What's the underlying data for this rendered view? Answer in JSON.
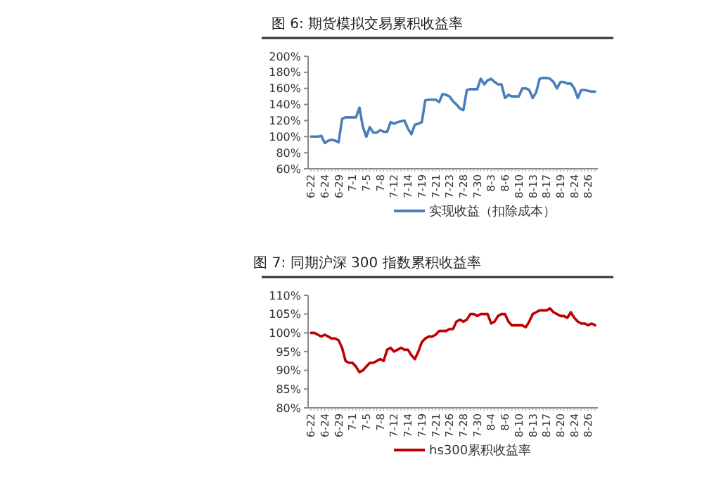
{
  "chart_data": [
    {
      "type": "line",
      "title": "图 6:  期货模拟交易累积收益率",
      "categories": [
        "6-22",
        null,
        null,
        null,
        "6-24",
        null,
        null,
        null,
        "6-29",
        null,
        null,
        null,
        "7-1",
        null,
        null,
        null,
        "7-5",
        null,
        null,
        null,
        "7-8",
        null,
        null,
        null,
        "7-12",
        null,
        null,
        null,
        "7-14",
        null,
        null,
        null,
        "7-19",
        null,
        null,
        null,
        "7-21",
        null,
        null,
        null,
        "7-23",
        null,
        null,
        null,
        "7-28",
        null,
        null,
        null,
        "7-30",
        null,
        null,
        null,
        "8-3",
        null,
        null,
        null,
        "8-6",
        null,
        null,
        null,
        "8-10",
        null,
        null,
        null,
        "8-13",
        null,
        null,
        null,
        "8-17",
        null,
        null,
        null,
        "8-19",
        null,
        null,
        null,
        "8-24",
        null,
        null,
        null,
        "8-26",
        null,
        null
      ],
      "series": [
        {
          "name": "实现收益（扣除成本）",
          "color": "#4a7ebb",
          "values": [
            100,
            100,
            100,
            101,
            92,
            95,
            96,
            95,
            93,
            122,
            124,
            124,
            124,
            124,
            136,
            112,
            100,
            112,
            105,
            105,
            108,
            106,
            106,
            118,
            116,
            118,
            119,
            120,
            110,
            103,
            115,
            116,
            118,
            145,
            146,
            146,
            146,
            143,
            153,
            152,
            150,
            144,
            140,
            135,
            133,
            158,
            159,
            159,
            159,
            172,
            165,
            170,
            172,
            168,
            165,
            165,
            148,
            152,
            150,
            150,
            150,
            160,
            160,
            158,
            148,
            155,
            172,
            173,
            173,
            172,
            168,
            160,
            168,
            168,
            166,
            166,
            160,
            148,
            158,
            158,
            157,
            156,
            156
          ]
        }
      ],
      "ylim": [
        60,
        200
      ],
      "yticks": [
        {
          "value": 60,
          "label": "60%"
        },
        {
          "value": 80,
          "label": "80%"
        },
        {
          "value": 100,
          "label": "100%"
        },
        {
          "value": 120,
          "label": "120%"
        },
        {
          "value": 140,
          "label": "140%"
        },
        {
          "value": 160,
          "label": "160%"
        },
        {
          "value": 180,
          "label": "180%"
        },
        {
          "value": 200,
          "label": "200%"
        }
      ],
      "legend": "bottom",
      "grid": false,
      "marker": "none",
      "line_style": "solid"
    },
    {
      "type": "line",
      "title": "图 7:  同期沪深 300 指数累积收益率",
      "categories": [
        "6-22",
        null,
        null,
        null,
        "6-24",
        null,
        null,
        null,
        "6-29",
        null,
        null,
        null,
        "7-1",
        null,
        null,
        null,
        "7-5",
        null,
        null,
        null,
        "7-8",
        null,
        null,
        null,
        "7-12",
        null,
        null,
        null,
        "7-14",
        null,
        null,
        null,
        "7-19",
        null,
        null,
        null,
        "7-21",
        null,
        null,
        null,
        "7-26",
        null,
        null,
        null,
        "7-28",
        null,
        null,
        null,
        "7-30",
        null,
        null,
        null,
        "8-4",
        null,
        null,
        null,
        "8-6",
        null,
        null,
        null,
        "8-10",
        null,
        null,
        null,
        "8-13",
        null,
        null,
        null,
        "8-17",
        null,
        null,
        null,
        "8-20",
        null,
        null,
        null,
        "8-24",
        null,
        null,
        null,
        "8-26",
        null,
        null
      ],
      "series": [
        {
          "name": "hs300累积收益率",
          "color": "#c00000",
          "values": [
            100,
            100,
            99.5,
            99,
            99.5,
            99,
            98.5,
            98.5,
            98,
            96,
            92.5,
            92,
            92,
            91,
            89.5,
            90,
            91,
            92,
            92,
            92.5,
            93,
            92.5,
            95.5,
            96,
            95,
            95.5,
            96,
            95.5,
            95.5,
            94,
            93,
            95,
            97.5,
            98.5,
            99,
            99,
            99.5,
            100.5,
            100.5,
            100.5,
            101,
            101,
            103,
            103.5,
            103,
            103.5,
            105,
            105,
            104.5,
            105,
            105,
            105,
            102.5,
            103,
            104.5,
            105,
            105,
            103,
            102,
            102,
            102,
            102,
            101.5,
            103,
            105,
            105.5,
            106,
            106,
            106,
            106.5,
            105.5,
            105,
            104.5,
            104.5,
            104,
            105.5,
            104,
            103,
            102.5,
            102.5,
            102,
            102.5,
            102
          ]
        }
      ],
      "ylim": [
        80,
        110
      ],
      "yticks": [
        {
          "value": 80,
          "label": "80%"
        },
        {
          "value": 85,
          "label": "85%"
        },
        {
          "value": 90,
          "label": "90%"
        },
        {
          "value": 95,
          "label": "95%"
        },
        {
          "value": 100,
          "label": "100%"
        },
        {
          "value": 105,
          "label": "105%"
        },
        {
          "value": 110,
          "label": "110%"
        }
      ],
      "legend": "bottom",
      "grid": false,
      "marker": "none",
      "line_style": "solid"
    }
  ]
}
